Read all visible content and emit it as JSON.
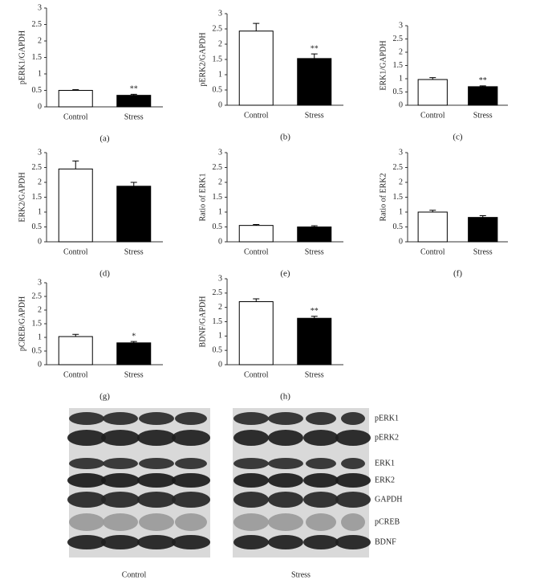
{
  "chart_data": [
    {
      "type": "bar",
      "caption": "(a)",
      "ylabel": "pERK1/GAPDH",
      "categories": [
        "Control",
        "Stress"
      ],
      "values": [
        0.5,
        0.35
      ],
      "errors": [
        0.02,
        0.03
      ],
      "significance": [
        null,
        "**"
      ],
      "colors": [
        "#ffffff",
        "#000000"
      ],
      "ylim": [
        0,
        3
      ],
      "yticks": [
        0,
        0.5,
        1,
        1.5,
        2,
        2.5,
        3
      ]
    },
    {
      "type": "bar",
      "caption": "(b)",
      "ylabel": "pERK2/GAPDH",
      "categories": [
        "Control",
        "Stress"
      ],
      "values": [
        2.43,
        1.53
      ],
      "errors": [
        0.25,
        0.15
      ],
      "significance": [
        null,
        "**"
      ],
      "colors": [
        "#ffffff",
        "#000000"
      ],
      "ylim": [
        0,
        3
      ],
      "yticks": [
        0,
        0.5,
        1,
        1.5,
        2,
        2.5,
        3
      ]
    },
    {
      "type": "bar",
      "caption": "(c)",
      "ylabel": "ERK1/GAPDH",
      "categories": [
        "Control",
        "Stress"
      ],
      "values": [
        0.97,
        0.7
      ],
      "errors": [
        0.07,
        0.03
      ],
      "significance": [
        null,
        "**"
      ],
      "colors": [
        "#ffffff",
        "#000000"
      ],
      "ylim": [
        0,
        3
      ],
      "yticks": [
        0,
        0.5,
        1,
        1.5,
        2,
        2.5,
        3
      ]
    },
    {
      "type": "bar",
      "caption": "(d)",
      "ylabel": "ERK2/GAPDH",
      "categories": [
        "Control",
        "Stress"
      ],
      "values": [
        2.45,
        1.87
      ],
      "errors": [
        0.27,
        0.13
      ],
      "significance": [
        null,
        null
      ],
      "colors": [
        "#ffffff",
        "#000000"
      ],
      "ylim": [
        0,
        3
      ],
      "yticks": [
        0,
        0.5,
        1,
        1.5,
        2,
        2.5,
        3
      ]
    },
    {
      "type": "bar",
      "caption": "(e)",
      "ylabel": "Ratio of ERK1",
      "categories": [
        "Control",
        "Stress"
      ],
      "values": [
        0.55,
        0.5
      ],
      "errors": [
        0.03,
        0.04
      ],
      "significance": [
        null,
        null
      ],
      "colors": [
        "#ffffff",
        "#000000"
      ],
      "ylim": [
        0,
        3
      ],
      "yticks": [
        0,
        0.5,
        1,
        1.5,
        2,
        2.5,
        3
      ]
    },
    {
      "type": "bar",
      "caption": "(f)",
      "ylabel": "Ratio of ERK2",
      "categories": [
        "Control",
        "Stress"
      ],
      "values": [
        1.0,
        0.82
      ],
      "errors": [
        0.06,
        0.06
      ],
      "significance": [
        null,
        null
      ],
      "colors": [
        "#ffffff",
        "#000000"
      ],
      "ylim": [
        0,
        3
      ],
      "yticks": [
        0,
        0.5,
        1,
        1.5,
        2,
        2.5,
        3
      ]
    },
    {
      "type": "bar",
      "caption": "(g)",
      "ylabel": "pCREB/GAPDH",
      "categories": [
        "Control",
        "Stress"
      ],
      "values": [
        1.03,
        0.8
      ],
      "errors": [
        0.08,
        0.05
      ],
      "significance": [
        null,
        "*"
      ],
      "colors": [
        "#ffffff",
        "#000000"
      ],
      "ylim": [
        0,
        3
      ],
      "yticks": [
        0,
        0.5,
        1,
        1.5,
        2,
        2.5,
        3
      ]
    },
    {
      "type": "bar",
      "caption": "(h)",
      "ylabel": "BDNF/GAPDH",
      "categories": [
        "Control",
        "Stress"
      ],
      "values": [
        2.2,
        1.62
      ],
      "errors": [
        0.1,
        0.07
      ],
      "significance": [
        null,
        "**"
      ],
      "colors": [
        "#ffffff",
        "#000000"
      ],
      "ylim": [
        0,
        3
      ],
      "yticks": [
        0,
        0.5,
        1,
        1.5,
        2,
        2.5,
        3
      ]
    }
  ],
  "blot": {
    "row_labels": [
      "pERK1",
      "pERK2",
      "ERK1",
      "ERK2",
      "GAPDH",
      "pCREB",
      "BDNF"
    ],
    "group_labels": [
      "Control",
      "Stress"
    ]
  }
}
